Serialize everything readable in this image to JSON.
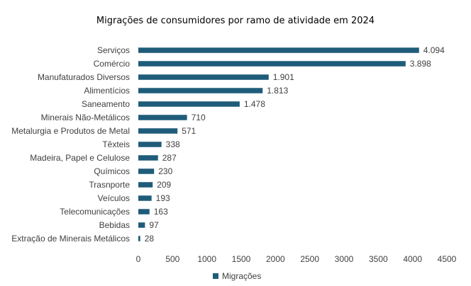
{
  "chart_data": {
    "type": "bar",
    "orientation": "horizontal",
    "title": "Migrações de consumidores por ramo de atividade em 2024",
    "xlabel": "",
    "ylabel": "",
    "xlim": [
      0,
      4500
    ],
    "x_ticks": [
      0,
      500,
      1000,
      1500,
      2000,
      2500,
      3000,
      3500,
      4000,
      4500
    ],
    "x_tick_labels": [
      "0",
      "500",
      "1000",
      "1500",
      "2000",
      "2500",
      "3000",
      "3500",
      "4000",
      "4500"
    ],
    "grid": false,
    "legend_position": "bottom",
    "bar_color": "#1f5c7a",
    "categories": [
      "Serviços",
      "Comércio",
      "Manufaturados Diversos",
      "Alimentícios",
      "Saneamento",
      "Minerais Não-Metálicos",
      "Metalurgia e Produtos de Metal",
      "Têxteis",
      "Madeira, Papel e Celulose",
      "Químicos",
      "Trasnporte",
      "Veículos",
      "Telecomunicações",
      "Bebidas",
      "Extração de Minerais Metálicos"
    ],
    "series": [
      {
        "name": "Migrações",
        "values": [
          4094,
          3898,
          1901,
          1813,
          1478,
          710,
          571,
          338,
          287,
          230,
          209,
          193,
          163,
          97,
          28
        ],
        "value_labels": [
          "4.094",
          "3.898",
          "1.901",
          "1.813",
          "1.478",
          "710",
          "571",
          "338",
          "287",
          "230",
          "209",
          "193",
          "163",
          "97",
          "28"
        ]
      }
    ]
  }
}
